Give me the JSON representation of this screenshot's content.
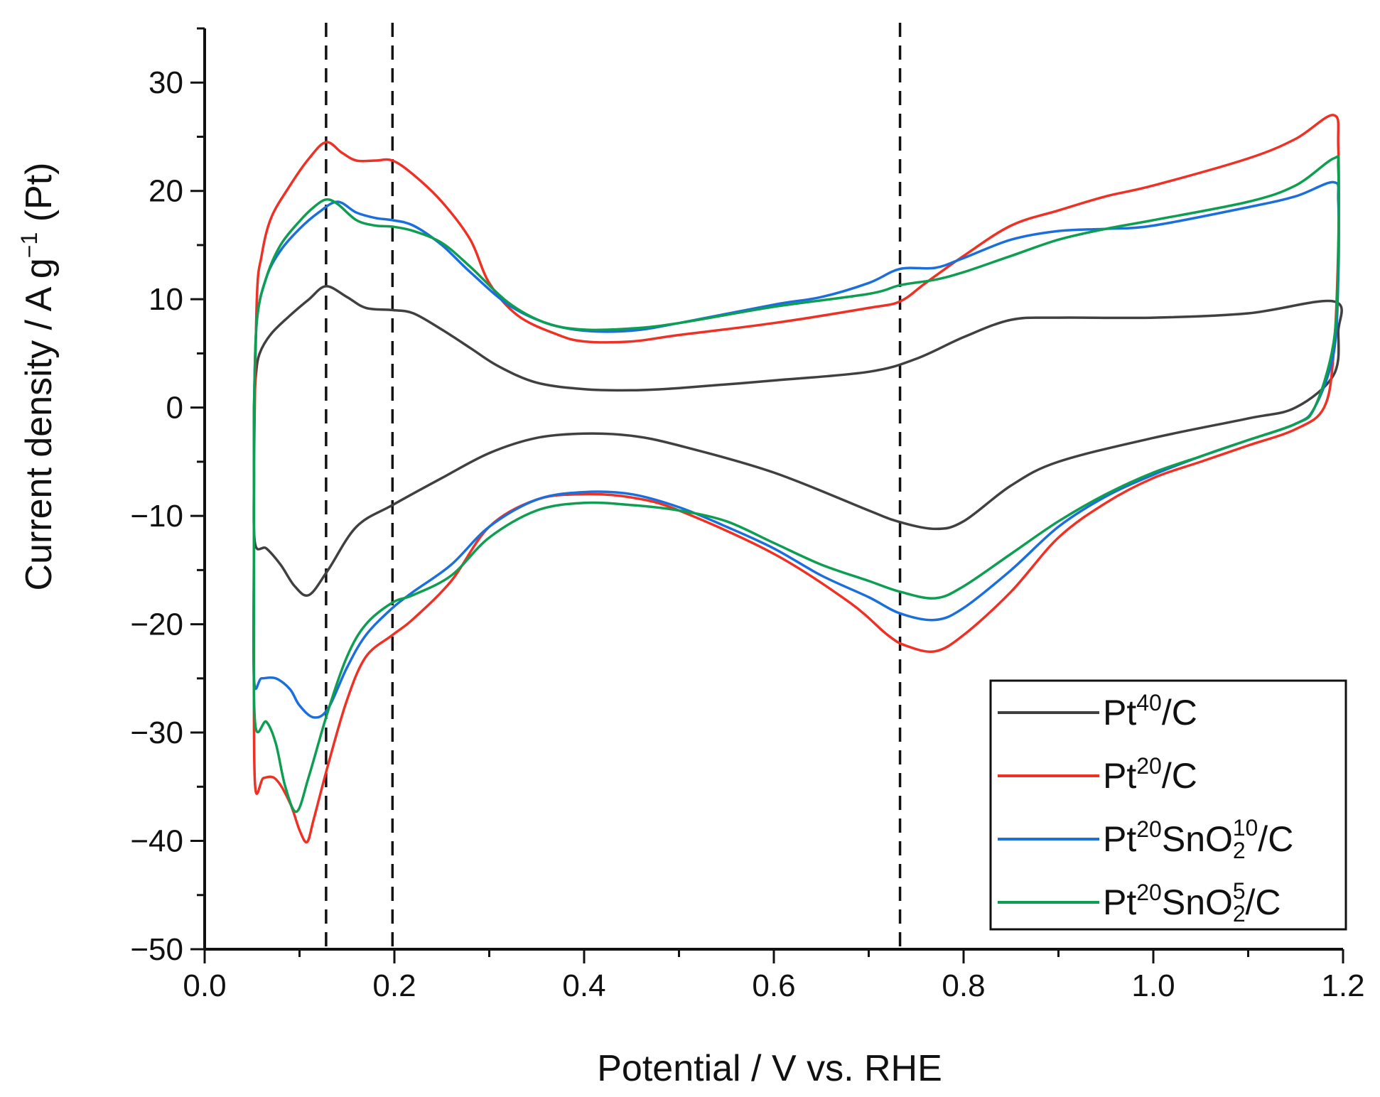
{
  "chart_data": {
    "type": "line",
    "title": "",
    "xlabel": "Potential / V vs. RHE",
    "ylabel": {
      "prefix": "Current density / A g",
      "superscript": "−1",
      "suffix": " (Pt)"
    },
    "xlim": [
      0.0,
      1.2
    ],
    "ylim": [
      -50,
      35
    ],
    "x_ticks": [
      {
        "value": 0.0,
        "label": "0.0"
      },
      {
        "value": 0.2,
        "label": "0.2"
      },
      {
        "value": 0.4,
        "label": "0.4"
      },
      {
        "value": 0.6,
        "label": "0.6"
      },
      {
        "value": 0.8,
        "label": "0.8"
      },
      {
        "value": 1.0,
        "label": "1.0"
      },
      {
        "value": 1.2,
        "label": "1.2"
      }
    ],
    "y_ticks": [
      {
        "value": 30,
        "label": "30"
      },
      {
        "value": 20,
        "label": "20"
      },
      {
        "value": 10,
        "label": "10"
      },
      {
        "value": 0,
        "label": "0"
      },
      {
        "value": -10,
        "label": "−10"
      },
      {
        "value": -20,
        "label": "−20"
      },
      {
        "value": -30,
        "label": "−30"
      },
      {
        "value": -40,
        "label": "−40"
      },
      {
        "value": -50,
        "label": "−50"
      }
    ],
    "x_minor_step": 0.1,
    "y_minor_step": 5,
    "reference_lines_x": [
      0.128,
      0.198,
      0.733
    ],
    "grid": false,
    "legend_position": "bottom-right",
    "series": [
      {
        "name": "Pt40/C",
        "legend": {
          "base": "Pt",
          "sup1": "40",
          "mid": "/C",
          "sub": "",
          "sup2": "",
          "tail": ""
        },
        "color": "#404040",
        "points": [
          [
            0.052,
            0
          ],
          [
            0.054,
            3
          ],
          [
            0.058,
            5
          ],
          [
            0.07,
            6.8
          ],
          [
            0.09,
            8.5
          ],
          [
            0.11,
            10
          ],
          [
            0.128,
            11.2
          ],
          [
            0.15,
            10.2
          ],
          [
            0.17,
            9.2
          ],
          [
            0.198,
            9
          ],
          [
            0.22,
            8.7
          ],
          [
            0.25,
            7.2
          ],
          [
            0.28,
            5.5
          ],
          [
            0.31,
            3.8
          ],
          [
            0.35,
            2.3
          ],
          [
            0.4,
            1.7
          ],
          [
            0.45,
            1.6
          ],
          [
            0.5,
            1.8
          ],
          [
            0.6,
            2.5
          ],
          [
            0.7,
            3.3
          ],
          [
            0.75,
            4.5
          ],
          [
            0.8,
            6.5
          ],
          [
            0.85,
            8.1
          ],
          [
            0.9,
            8.3
          ],
          [
            1.0,
            8.3
          ],
          [
            1.1,
            8.7
          ],
          [
            1.19,
            9.8
          ],
          [
            1.195,
            7
          ],
          [
            1.19,
            3
          ],
          [
            1.15,
            0
          ],
          [
            1.1,
            -1
          ],
          [
            1.0,
            -2.8
          ],
          [
            0.9,
            -5
          ],
          [
            0.85,
            -7.2
          ],
          [
            0.8,
            -10.5
          ],
          [
            0.77,
            -11.2
          ],
          [
            0.73,
            -10.5
          ],
          [
            0.7,
            -9.5
          ],
          [
            0.6,
            -6
          ],
          [
            0.5,
            -3.5
          ],
          [
            0.45,
            -2.6
          ],
          [
            0.4,
            -2.4
          ],
          [
            0.35,
            -2.8
          ],
          [
            0.3,
            -4.2
          ],
          [
            0.25,
            -6.5
          ],
          [
            0.198,
            -9
          ],
          [
            0.16,
            -11
          ],
          [
            0.13,
            -15
          ],
          [
            0.11,
            -17.3
          ],
          [
            0.095,
            -16.5
          ],
          [
            0.08,
            -14.5
          ],
          [
            0.065,
            -13
          ],
          [
            0.053,
            -12.5
          ],
          [
            0.052,
            -6
          ],
          [
            0.052,
            0
          ]
        ]
      },
      {
        "name": "Pt20/C",
        "legend": {
          "base": "Pt",
          "sup1": "20",
          "mid": "/C",
          "sub": "",
          "sup2": "",
          "tail": ""
        },
        "color": "#ee3124",
        "points": [
          [
            0.052,
            -5
          ],
          [
            0.055,
            10
          ],
          [
            0.06,
            14
          ],
          [
            0.07,
            17.5
          ],
          [
            0.09,
            20.5
          ],
          [
            0.11,
            23
          ],
          [
            0.128,
            24.5
          ],
          [
            0.145,
            23.5
          ],
          [
            0.16,
            22.8
          ],
          [
            0.18,
            22.8
          ],
          [
            0.198,
            22.8
          ],
          [
            0.22,
            21.5
          ],
          [
            0.25,
            19
          ],
          [
            0.28,
            15.5
          ],
          [
            0.3,
            11.5
          ],
          [
            0.33,
            8.5
          ],
          [
            0.37,
            6.8
          ],
          [
            0.4,
            6.1
          ],
          [
            0.45,
            6.1
          ],
          [
            0.5,
            6.7
          ],
          [
            0.6,
            7.8
          ],
          [
            0.7,
            9.2
          ],
          [
            0.733,
            9.8
          ],
          [
            0.76,
            11.5
          ],
          [
            0.8,
            14
          ],
          [
            0.85,
            16.8
          ],
          [
            0.9,
            18.2
          ],
          [
            0.95,
            19.5
          ],
          [
            1.0,
            20.5
          ],
          [
            1.1,
            23
          ],
          [
            1.15,
            24.8
          ],
          [
            1.19,
            27
          ],
          [
            1.195,
            24
          ],
          [
            1.195,
            15
          ],
          [
            1.19,
            5
          ],
          [
            1.18,
            0
          ],
          [
            1.15,
            -2
          ],
          [
            1.1,
            -3.5
          ],
          [
            1.05,
            -5
          ],
          [
            1.0,
            -6.5
          ],
          [
            0.95,
            -8.8
          ],
          [
            0.9,
            -12
          ],
          [
            0.85,
            -17
          ],
          [
            0.8,
            -21
          ],
          [
            0.77,
            -22.5
          ],
          [
            0.74,
            -22
          ],
          [
            0.72,
            -21
          ],
          [
            0.68,
            -18
          ],
          [
            0.6,
            -13.5
          ],
          [
            0.5,
            -9.5
          ],
          [
            0.45,
            -8.3
          ],
          [
            0.4,
            -8
          ],
          [
            0.35,
            -8.5
          ],
          [
            0.3,
            -11
          ],
          [
            0.26,
            -16
          ],
          [
            0.22,
            -19.5
          ],
          [
            0.198,
            -21
          ],
          [
            0.17,
            -23
          ],
          [
            0.15,
            -27
          ],
          [
            0.13,
            -33
          ],
          [
            0.115,
            -38
          ],
          [
            0.108,
            -40.1
          ],
          [
            0.1,
            -39
          ],
          [
            0.09,
            -36.5
          ],
          [
            0.075,
            -34.3
          ],
          [
            0.062,
            -34.2
          ],
          [
            0.053,
            -34.7
          ],
          [
            0.052,
            -20
          ],
          [
            0.052,
            -5
          ]
        ]
      },
      {
        "name": "Pt20SnO210/C",
        "legend": {
          "base": "Pt",
          "sup1": "20",
          "mid": "SnO",
          "sub": "2",
          "sup2": "10",
          "tail": "/C"
        },
        "color": "#1b6fdc",
        "points": [
          [
            0.052,
            0
          ],
          [
            0.055,
            8
          ],
          [
            0.065,
            12
          ],
          [
            0.08,
            14.5
          ],
          [
            0.1,
            16.5
          ],
          [
            0.12,
            18
          ],
          [
            0.14,
            19
          ],
          [
            0.16,
            18
          ],
          [
            0.18,
            17.5
          ],
          [
            0.198,
            17.3
          ],
          [
            0.22,
            16.8
          ],
          [
            0.25,
            15
          ],
          [
            0.28,
            12.5
          ],
          [
            0.32,
            9.5
          ],
          [
            0.36,
            7.8
          ],
          [
            0.4,
            7.1
          ],
          [
            0.45,
            7.1
          ],
          [
            0.5,
            7.8
          ],
          [
            0.6,
            9.5
          ],
          [
            0.65,
            10.2
          ],
          [
            0.7,
            11.5
          ],
          [
            0.733,
            12.8
          ],
          [
            0.77,
            12.9
          ],
          [
            0.8,
            13.8
          ],
          [
            0.85,
            15.5
          ],
          [
            0.9,
            16.3
          ],
          [
            0.95,
            16.5
          ],
          [
            1.0,
            16.8
          ],
          [
            1.1,
            18.5
          ],
          [
            1.15,
            19.5
          ],
          [
            1.19,
            20.8
          ],
          [
            1.195,
            19
          ],
          [
            1.195,
            12
          ],
          [
            1.19,
            5
          ],
          [
            1.17,
            0
          ],
          [
            1.15,
            -1.5
          ],
          [
            1.1,
            -3
          ],
          [
            1.05,
            -4.5
          ],
          [
            1.0,
            -6.2
          ],
          [
            0.95,
            -8.2
          ],
          [
            0.9,
            -11
          ],
          [
            0.85,
            -15
          ],
          [
            0.8,
            -18.5
          ],
          [
            0.77,
            -19.6
          ],
          [
            0.733,
            -19
          ],
          [
            0.7,
            -17.5
          ],
          [
            0.65,
            -15.5
          ],
          [
            0.6,
            -13
          ],
          [
            0.55,
            -11
          ],
          [
            0.5,
            -9.2
          ],
          [
            0.45,
            -8
          ],
          [
            0.4,
            -7.8
          ],
          [
            0.35,
            -8.5
          ],
          [
            0.3,
            -11
          ],
          [
            0.26,
            -14.5
          ],
          [
            0.22,
            -17
          ],
          [
            0.198,
            -18.5
          ],
          [
            0.17,
            -21
          ],
          [
            0.15,
            -24
          ],
          [
            0.13,
            -27.8
          ],
          [
            0.115,
            -28.6
          ],
          [
            0.1,
            -27.5
          ],
          [
            0.09,
            -26
          ],
          [
            0.075,
            -25
          ],
          [
            0.06,
            -25
          ],
          [
            0.052,
            -25
          ],
          [
            0.052,
            -12
          ],
          [
            0.052,
            0
          ]
        ]
      },
      {
        "name": "Pt20SnO25/C",
        "legend": {
          "base": "Pt",
          "sup1": "20",
          "mid": "SnO",
          "sub": "2",
          "sup2": "5",
          "tail": "/C"
        },
        "color": "#0e9e52",
        "points": [
          [
            0.052,
            0
          ],
          [
            0.055,
            8
          ],
          [
            0.065,
            12
          ],
          [
            0.08,
            15
          ],
          [
            0.1,
            17.2
          ],
          [
            0.115,
            18.5
          ],
          [
            0.128,
            19.2
          ],
          [
            0.14,
            18.8
          ],
          [
            0.16,
            17.3
          ],
          [
            0.18,
            16.8
          ],
          [
            0.198,
            16.7
          ],
          [
            0.22,
            16.3
          ],
          [
            0.25,
            15.2
          ],
          [
            0.28,
            13
          ],
          [
            0.32,
            9.7
          ],
          [
            0.36,
            7.8
          ],
          [
            0.4,
            7.2
          ],
          [
            0.45,
            7.3
          ],
          [
            0.5,
            7.8
          ],
          [
            0.6,
            9.3
          ],
          [
            0.7,
            10.5
          ],
          [
            0.733,
            11.3
          ],
          [
            0.77,
            11.8
          ],
          [
            0.8,
            12.5
          ],
          [
            0.85,
            14
          ],
          [
            0.9,
            15.5
          ],
          [
            0.95,
            16.5
          ],
          [
            1.0,
            17.3
          ],
          [
            1.1,
            19
          ],
          [
            1.15,
            20.5
          ],
          [
            1.19,
            23
          ],
          [
            1.195,
            22
          ],
          [
            1.195,
            14
          ],
          [
            1.19,
            6
          ],
          [
            1.17,
            0
          ],
          [
            1.15,
            -1.5
          ],
          [
            1.1,
            -3
          ],
          [
            1.05,
            -4.5
          ],
          [
            1.0,
            -6
          ],
          [
            0.95,
            -8
          ],
          [
            0.9,
            -10.5
          ],
          [
            0.85,
            -13.5
          ],
          [
            0.8,
            -16.5
          ],
          [
            0.77,
            -17.6
          ],
          [
            0.733,
            -17
          ],
          [
            0.7,
            -16
          ],
          [
            0.65,
            -14.5
          ],
          [
            0.6,
            -12.5
          ],
          [
            0.55,
            -10.5
          ],
          [
            0.5,
            -9.5
          ],
          [
            0.45,
            -9
          ],
          [
            0.4,
            -8.8
          ],
          [
            0.35,
            -9.5
          ],
          [
            0.3,
            -12
          ],
          [
            0.26,
            -15.5
          ],
          [
            0.22,
            -17.3
          ],
          [
            0.198,
            -18
          ],
          [
            0.17,
            -20
          ],
          [
            0.15,
            -23
          ],
          [
            0.13,
            -28
          ],
          [
            0.11,
            -34
          ],
          [
            0.097,
            -37.3
          ],
          [
            0.085,
            -35
          ],
          [
            0.075,
            -31
          ],
          [
            0.065,
            -29
          ],
          [
            0.053,
            -29
          ],
          [
            0.052,
            -15
          ],
          [
            0.052,
            0
          ]
        ]
      }
    ]
  }
}
